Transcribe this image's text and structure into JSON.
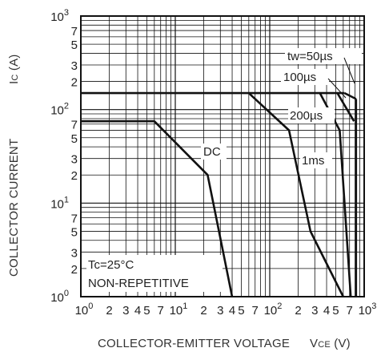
{
  "chart_data": {
    "type": "line",
    "title": "",
    "xlabel": "COLLECTOR-EMITTER VOLTAGE",
    "xlabel_symbol": "VCE (V)",
    "ylabel": "COLLECTOR CURRENT",
    "ylabel_symbol": "IC (A)",
    "xscale": "log",
    "yscale": "log",
    "xlim": [
      1,
      1000
    ],
    "ylim": [
      1,
      1000
    ],
    "grid": true,
    "x_major_ticks": [
      {
        "base": "10",
        "exp": "0"
      },
      {
        "base": "10",
        "exp": "1"
      },
      {
        "base": "10",
        "exp": "2"
      },
      {
        "base": "10",
        "exp": "3"
      }
    ],
    "y_major_ticks": [
      {
        "base": "10",
        "exp": "0"
      },
      {
        "base": "10",
        "exp": "1"
      },
      {
        "base": "10",
        "exp": "2"
      },
      {
        "base": "10",
        "exp": "3"
      }
    ],
    "minor_tick_labels": [
      "2",
      "3",
      "4",
      "5",
      "7"
    ],
    "y_minor_tick_labels": [
      "2",
      "3",
      "5",
      "7"
    ],
    "series": [
      {
        "name": "DC",
        "x": [
          1,
          6,
          22,
          40
        ],
        "y": [
          75,
          75,
          20,
          1
        ]
      },
      {
        "name": "1ms",
        "x": [
          60,
          160,
          270,
          600
        ],
        "y": [
          150,
          60,
          5,
          1
        ]
      },
      {
        "name": "200µs",
        "x": [
          340,
          550,
          720
        ],
        "y": [
          150,
          60,
          1
        ]
      },
      {
        "name": "100µs",
        "x": [
          520,
          780
        ],
        "y": [
          150,
          75
        ]
      },
      {
        "name": "tw=50µs",
        "x": [
          620,
          820
        ],
        "y": [
          150,
          130
        ]
      }
    ],
    "boundaries": [
      {
        "name": "IC max",
        "x": [
          1,
          620
        ],
        "y": [
          150,
          150
        ]
      },
      {
        "name": "VCE max",
        "x": [
          820,
          820
        ],
        "y": [
          1,
          130
        ]
      }
    ],
    "annotations": [
      "DC",
      "1ms",
      "200µs",
      "100µs",
      "tw=50µs",
      "Tc=25°C",
      "NON-REPETITIVE"
    ]
  }
}
